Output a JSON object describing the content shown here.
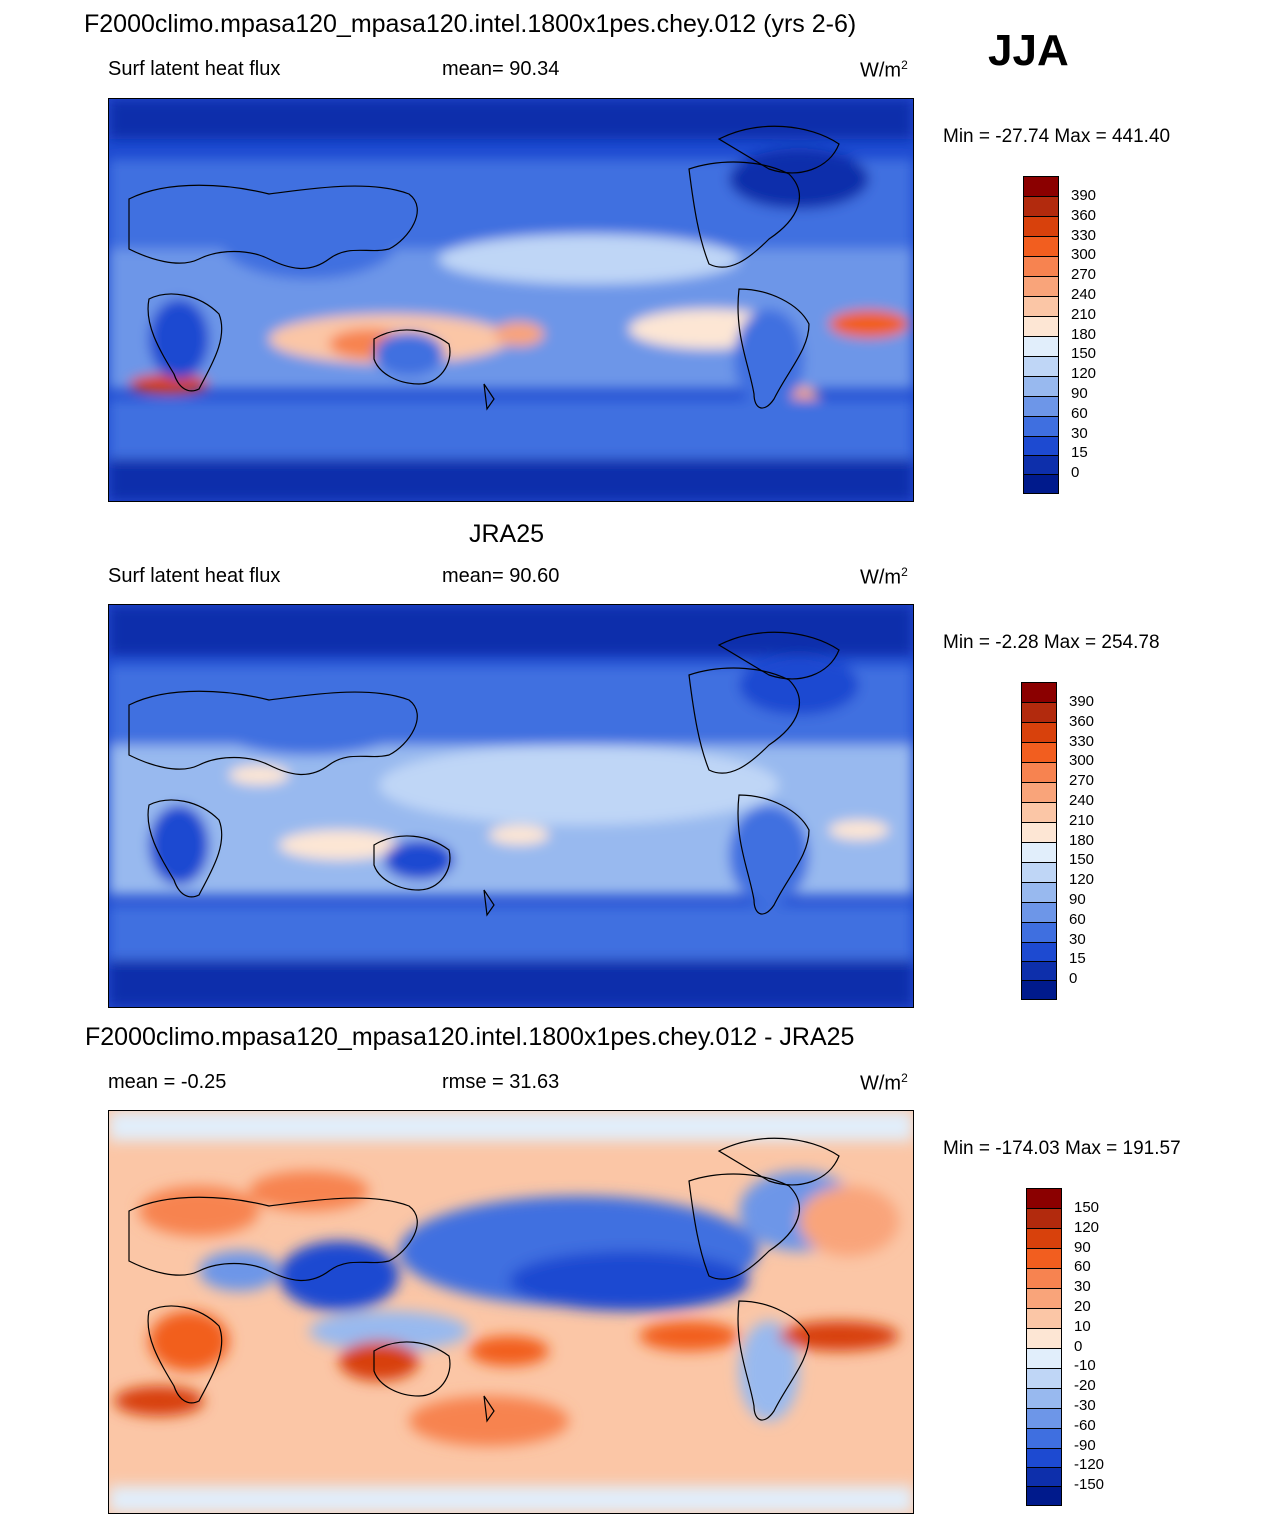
{
  "season": "JJA",
  "panels": [
    {
      "title": "F2000climo.mpasa120_mpasa120.intel.1800x1pes.chey.012 (yrs 2-6)",
      "left_label": "Surf latent heat flux",
      "center_label": "mean=  90.34",
      "units": "W/m",
      "units_sup": "2",
      "minmax": "Min = -27.74 Max = 441.40",
      "colorbar_labels": [
        "390",
        "360",
        "330",
        "300",
        "270",
        "240",
        "210",
        "180",
        "150",
        "120",
        "90",
        "60",
        "30",
        "15",
        "0"
      ]
    },
    {
      "title": "JRA25",
      "left_label": "Surf latent heat flux",
      "center_label": "mean=  90.60",
      "units": "W/m",
      "units_sup": "2",
      "minmax": "Min =  -2.28 Max = 254.78",
      "colorbar_labels": [
        "390",
        "360",
        "330",
        "300",
        "270",
        "240",
        "210",
        "180",
        "150",
        "120",
        "90",
        "60",
        "30",
        "15",
        "0"
      ]
    },
    {
      "title": "F2000climo.mpasa120_mpasa120.intel.1800x1pes.chey.012 - JRA25",
      "left_label": "mean =  -0.25",
      "center_label": "rmse =  31.63",
      "units": "W/m",
      "units_sup": "2",
      "minmax": "Min = -174.03 Max = 191.57",
      "colorbar_labels": [
        "150",
        "120",
        "90",
        "60",
        "30",
        "20",
        "10",
        "0",
        "-10",
        "-20",
        "-30",
        "-60",
        "-90",
        "-120",
        "-150"
      ]
    }
  ],
  "colors": {
    "abs_scale": [
      "#8b0000",
      "#b22a0d",
      "#d8410c",
      "#f25e1f",
      "#f78350",
      "#f9a47a",
      "#fbc6a6",
      "#fde6d4",
      "#e1eefb",
      "#bfd6f6",
      "#98b9ef",
      "#6d96e8",
      "#3f6fe0",
      "#1d4ad1",
      "#0d2fab",
      "#001a8c"
    ],
    "diff_scale": [
      "#8b0000",
      "#b22a0d",
      "#d8410c",
      "#f25e1f",
      "#f78350",
      "#f9a47a",
      "#fbc6a6",
      "#fde6d4",
      "#e1eefb",
      "#bfd6f6",
      "#98b9ef",
      "#6d96e8",
      "#3f6fe0",
      "#1d4ad1",
      "#0d2fab",
      "#001a8c"
    ]
  }
}
